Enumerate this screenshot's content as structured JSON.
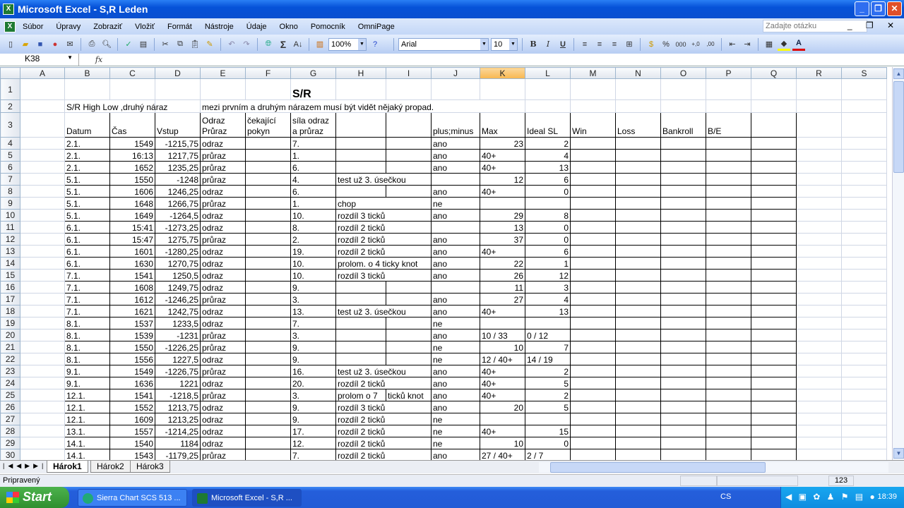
{
  "window": {
    "title": "Microsoft Excel - S,R Leden"
  },
  "menu": {
    "items": [
      "Súbor",
      "Úpravy",
      "Zobraziť",
      "Vložiť",
      "Formát",
      "Nástroje",
      "Údaje",
      "Okno",
      "Pomocník",
      "OmniPage"
    ],
    "ask_placeholder": "Zadajte otázku"
  },
  "toolbar": {
    "zoom": "100%",
    "font": "Arial",
    "font_size": "10",
    "bold": "B",
    "italic": "I",
    "underline": "U",
    "percent": "%",
    "thousands": "000"
  },
  "formula_bar": {
    "name_box": "K38",
    "fx": "fx",
    "content": ""
  },
  "sheet": {
    "columns": [
      "A",
      "B",
      "C",
      "D",
      "E",
      "F",
      "G",
      "H",
      "I",
      "J",
      "K",
      "L",
      "M",
      "N",
      "O",
      "P",
      "Q",
      "R",
      "S"
    ],
    "selected_column": "K",
    "title_cell": "S/R",
    "note_b2": "S/R High Low ,druhý náraz",
    "note_e2": "mezi prvním a druhým nárazem musí být vidět nějaký propad.",
    "headers": [
      "Datum",
      "Čas",
      "Vstup",
      "Odraz\nPrůraz",
      "čekající\npokyn",
      "síla odraz\na průraz",
      "",
      "",
      "plus;minus",
      "Max",
      "Ideal SL",
      "Win",
      "Loss",
      "Bankroll",
      "B/E",
      ""
    ],
    "rows": [
      [
        "2.1.",
        "1549",
        "-1215,75",
        "odraz",
        "",
        "7.",
        "",
        "",
        "ano",
        "23",
        "2"
      ],
      [
        "2.1.",
        "16:13",
        "1217,75",
        "průraz",
        "",
        "1.",
        "",
        "",
        "ano",
        "40+",
        "4"
      ],
      [
        "2.1.",
        "1652",
        "1235,25",
        "průraz",
        "",
        "6.",
        "",
        "",
        "ano",
        "40+",
        "13"
      ],
      [
        "5.1.",
        "1550",
        "-1248",
        "průraz",
        "",
        "4.",
        "test už 3. úsečkou",
        "",
        "",
        "12",
        "6"
      ],
      [
        "5.1.",
        "1606",
        "1246,25",
        "odraz",
        "",
        "6.",
        "",
        "",
        "ano",
        "40+",
        "0"
      ],
      [
        "5.1.",
        "1648",
        "1266,75",
        "průraz",
        "",
        "1.",
        "chop",
        "",
        "ne",
        "",
        ""
      ],
      [
        "5.1.",
        "1649",
        "-1264,5",
        "odraz",
        "",
        "10.",
        "rozdíl 3 ticků",
        "",
        "ano",
        "29",
        "8"
      ],
      [
        "6.1.",
        "15:41",
        "-1273,25",
        "odraz",
        "",
        "8.",
        "rozdíl 2 ticků",
        "",
        "",
        "13",
        "0"
      ],
      [
        "6.1.",
        "15:47",
        "1275,75",
        "průraz",
        "",
        "2.",
        "rozdíl 2 ticků",
        "",
        "ano",
        "37",
        "0"
      ],
      [
        "6.1.",
        "1601",
        "-1280,25",
        "odraz",
        "",
        "19.",
        "rozdíl 2 ticků",
        "",
        "ano",
        "40+",
        "6"
      ],
      [
        "6.1.",
        "1630",
        "1270,75",
        "odraz",
        "",
        "10.",
        "prolom. o 4 ticky knot",
        "",
        "ano",
        "22",
        "1"
      ],
      [
        "7.1.",
        "1541",
        "1250,5",
        "odraz",
        "",
        "10.",
        "rozdíl 3 ticků",
        "",
        "ano",
        "26",
        "12"
      ],
      [
        "7.1.",
        "1608",
        "1249,75",
        "odraz",
        "",
        "9.",
        "",
        "",
        "",
        "11",
        "3"
      ],
      [
        "7.1.",
        "1612",
        "-1246,25",
        "průraz",
        "",
        "3.",
        "",
        "",
        "ano",
        "27",
        "4"
      ],
      [
        "7.1.",
        "1621",
        "1242,75",
        "odraz",
        "",
        "13.",
        "test už 3. úsečkou",
        "",
        "ano",
        "40+",
        "13"
      ],
      [
        "8.1.",
        "1537",
        "1233,5",
        "odraz",
        "",
        "7.",
        "",
        "",
        "ne",
        "",
        ""
      ],
      [
        "8.1.",
        "1539",
        "-1231",
        "průraz",
        "",
        "3.",
        "",
        "",
        "ano",
        " 10 / 33",
        "0 / 12"
      ],
      [
        "8.1.",
        "1550",
        "-1226,25",
        "průraz",
        "",
        "9.",
        "",
        "",
        "ne",
        "10",
        "7"
      ],
      [
        "8.1.",
        "1556",
        "1227,5",
        "odraz",
        "",
        "9.",
        "",
        "",
        "ne",
        " 12 / 40+",
        "14 / 19"
      ],
      [
        "9.1.",
        "1549",
        "-1226,75",
        "průraz",
        "",
        "16.",
        "test už 3. úsečkou",
        "",
        "ano",
        "40+",
        "2"
      ],
      [
        "9.1.",
        "1636",
        "1221",
        "odraz",
        "",
        "20.",
        "rozdíl 2 ticků",
        "",
        "ano",
        "40+",
        "5"
      ],
      [
        "12.1.",
        "1541",
        "-1218,5",
        "průraz",
        "",
        "3.",
        "prolom o 7",
        "ticků knot",
        "ano",
        "40+",
        "2"
      ],
      [
        "12.1.",
        "1552",
        "1213,75",
        "odraz",
        "",
        "9.",
        "rozdíl 3 ticků",
        "",
        "ano",
        "20",
        "5"
      ],
      [
        "12.1.",
        "1609",
        "1213,25",
        "odraz",
        "",
        "9.",
        "rozdíl 2 ticků",
        "",
        "ne",
        "",
        ""
      ],
      [
        "13.1.",
        "1557",
        "-1214,25",
        "odraz",
        "",
        "17.",
        "rozdíl 2 ticků",
        "",
        "ne",
        "40+",
        "15"
      ],
      [
        "14.1.",
        "1540",
        "1184",
        "odraz",
        "",
        "12.",
        "rozdíl 2 ticků",
        "",
        "ne",
        "10",
        "0"
      ],
      [
        "14.1.",
        "1543",
        "-1179,25",
        "průraz",
        "",
        "7.",
        "rozdíl 2 ticků",
        "",
        "ano",
        " 27 / 40+",
        " 2 / 7"
      ]
    ]
  },
  "sheet_tabs": [
    "Hárok1",
    "Hárok2",
    "Hárok3"
  ],
  "active_tab": "Hárok1",
  "status": {
    "text": "Pripravený",
    "num": "123"
  },
  "taskbar": {
    "start": "Start",
    "tasks": [
      "Sierra Chart SCS 513 ...",
      "Microsoft Excel - S,R ..."
    ],
    "lang": "CS",
    "clock": "18:39"
  }
}
